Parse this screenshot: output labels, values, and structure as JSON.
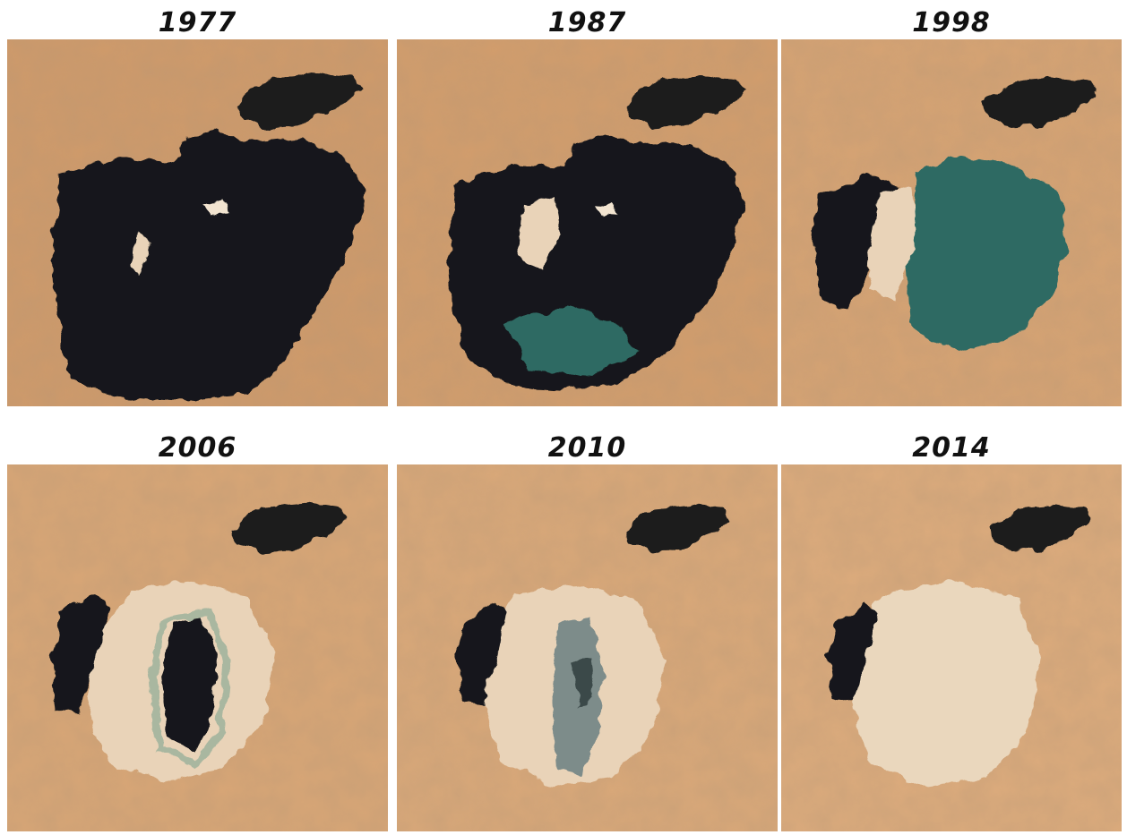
{
  "colors": {
    "desert": "#cf9a6a",
    "desert_light": "#dcae80",
    "salt_flat": "#e9d3b8",
    "deep_water": "#15181a",
    "turquoise_water": "#2f6b63",
    "grey_water": "#7d8c8a"
  },
  "panels": [
    {
      "year": "1977"
    },
    {
      "year": "1987"
    },
    {
      "year": "1998"
    },
    {
      "year": "2006"
    },
    {
      "year": "2010"
    },
    {
      "year": "2014"
    }
  ]
}
